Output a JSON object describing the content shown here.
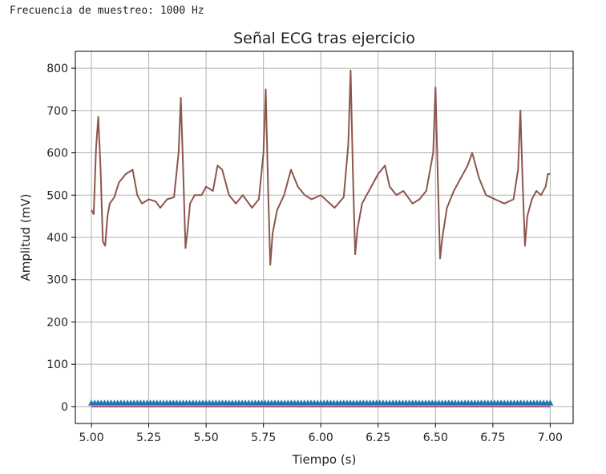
{
  "output": {
    "sampling_text": "Frecuencia de muestreo: 1000 Hz"
  },
  "chart_data": {
    "type": "line",
    "title": "Señal ECG tras ejercicio",
    "xlabel": "Tiempo (s)",
    "ylabel": "Amplitud (mV)",
    "xlim": [
      4.93,
      7.1
    ],
    "ylim": [
      -40,
      840
    ],
    "xticks": [
      5.0,
      5.25,
      5.5,
      5.75,
      6.0,
      6.25,
      6.5,
      6.75,
      7.0
    ],
    "xtick_labels": [
      "5.00",
      "5.25",
      "5.50",
      "5.75",
      "6.00",
      "6.25",
      "6.50",
      "6.75",
      "7.00"
    ],
    "yticks": [
      0,
      100,
      200,
      300,
      400,
      500,
      600,
      700,
      800
    ],
    "ytick_labels": [
      "0",
      "100",
      "200",
      "300",
      "400",
      "500",
      "600",
      "700",
      "800"
    ],
    "grid": true,
    "colors": {
      "ecg": "#8c564b",
      "markers": "#1f77b4",
      "baseline": "#d62728",
      "baseline2": "#9467bd",
      "axes": "#000000",
      "grid": "#b0b0b0"
    },
    "series": [
      {
        "role": "ecg",
        "x": [
          5.0,
          5.01,
          5.02,
          5.03,
          5.04,
          5.05,
          5.06,
          5.07,
          5.08,
          5.1,
          5.12,
          5.15,
          5.18,
          5.2,
          5.22,
          5.25,
          5.28,
          5.3,
          5.33,
          5.36,
          5.38,
          5.39,
          5.4,
          5.41,
          5.42,
          5.43,
          5.45,
          5.48,
          5.5,
          5.53,
          5.55,
          5.57,
          5.6,
          5.63,
          5.66,
          5.7,
          5.73,
          5.75,
          5.76,
          5.77,
          5.78,
          5.79,
          5.81,
          5.84,
          5.87,
          5.9,
          5.93,
          5.96,
          6.0,
          6.03,
          6.06,
          6.1,
          6.12,
          6.13,
          6.14,
          6.15,
          6.16,
          6.18,
          6.2,
          6.23,
          6.25,
          6.28,
          6.3,
          6.33,
          6.36,
          6.4,
          6.43,
          6.46,
          6.49,
          6.5,
          6.51,
          6.52,
          6.53,
          6.55,
          6.58,
          6.61,
          6.64,
          6.66,
          6.69,
          6.72,
          6.76,
          6.8,
          6.84,
          6.86,
          6.87,
          6.88,
          6.89,
          6.9,
          6.92,
          6.94,
          6.96,
          6.98,
          6.99,
          7.0
        ],
        "y": [
          465,
          455,
          610,
          685,
          560,
          390,
          380,
          450,
          480,
          495,
          530,
          550,
          560,
          500,
          480,
          490,
          485,
          470,
          490,
          495,
          600,
          730,
          560,
          375,
          420,
          480,
          500,
          500,
          520,
          510,
          570,
          560,
          500,
          480,
          500,
          470,
          490,
          600,
          750,
          520,
          335,
          410,
          465,
          500,
          560,
          520,
          500,
          490,
          500,
          485,
          470,
          495,
          620,
          795,
          550,
          360,
          420,
          480,
          500,
          530,
          550,
          570,
          520,
          500,
          510,
          480,
          490,
          510,
          600,
          755,
          540,
          350,
          400,
          470,
          510,
          540,
          570,
          600,
          540,
          500,
          490,
          480,
          490,
          560,
          700,
          530,
          380,
          450,
          490,
          510,
          500,
          520,
          550,
          550
        ]
      },
      {
        "role": "markers",
        "label": "",
        "y_constant": 9
      },
      {
        "role": "baseline",
        "y_constant": 0
      }
    ]
  }
}
